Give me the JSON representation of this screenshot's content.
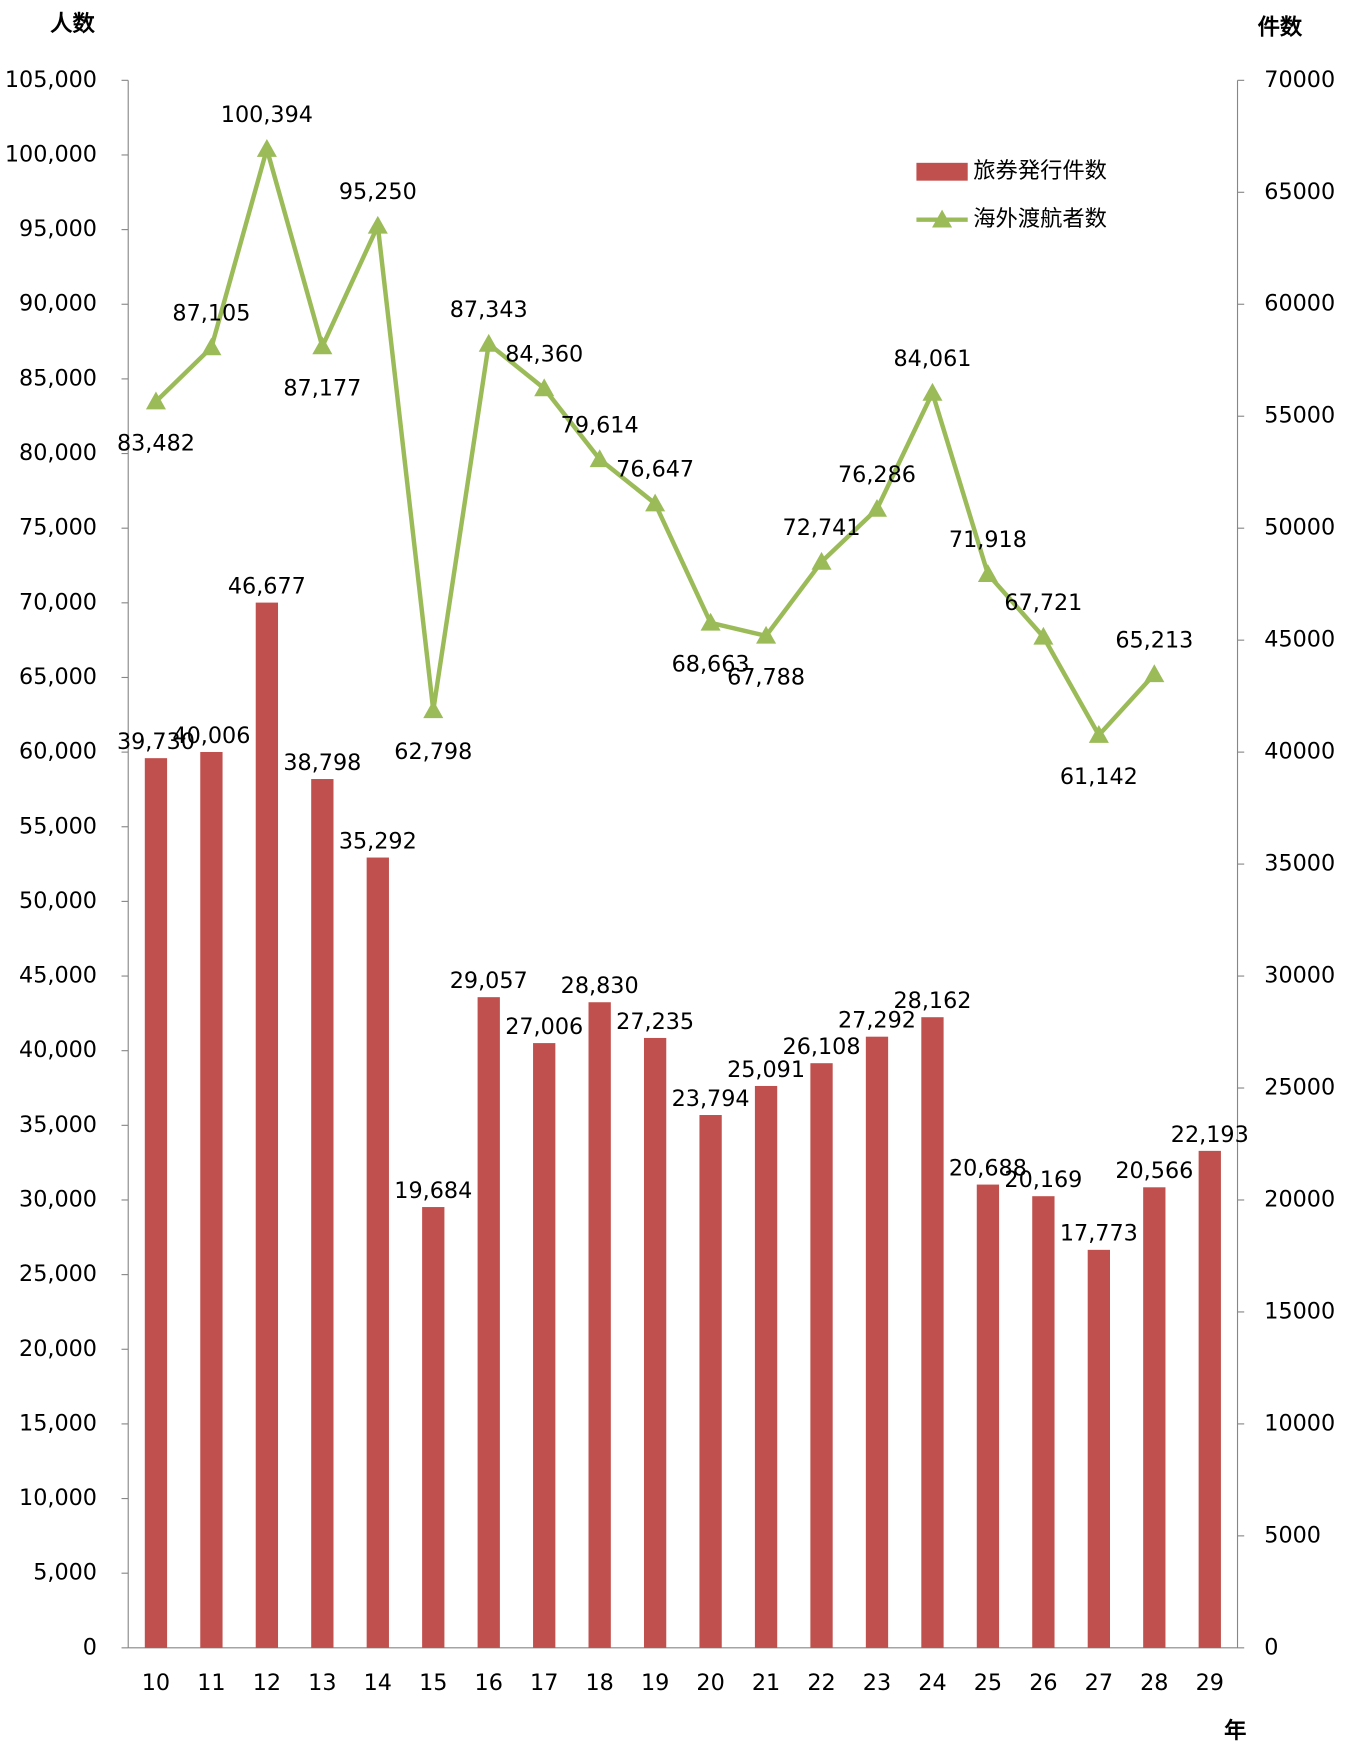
{
  "chart_data": {
    "type": "bar-line",
    "y_label": "人数",
    "y2_label": "件数",
    "x_label": "年",
    "categories": [
      "10",
      "11",
      "12",
      "13",
      "14",
      "15",
      "16",
      "17",
      "18",
      "19",
      "20",
      "21",
      "22",
      "23",
      "24",
      "25",
      "26",
      "27",
      "28",
      "29"
    ],
    "series": [
      {
        "name": "旅券発行件数",
        "type": "bar",
        "axis": "y2",
        "color": "#c0504d",
        "values": [
          39730,
          40006,
          46677,
          38798,
          35292,
          19684,
          29057,
          27006,
          28830,
          27235,
          23794,
          25091,
          26108,
          27292,
          28162,
          20688,
          20169,
          17773,
          20566,
          22193
        ],
        "value_labels": [
          "39,730",
          "40,006",
          "46,677",
          "38,798",
          "35,292",
          "19,684",
          "29,057",
          "27,006",
          "28,830",
          "27,235",
          "23,794",
          "25,091",
          "26,108",
          "27,292",
          "28,162",
          "20,688",
          "20,169",
          "17,773",
          "20,566",
          "22,193"
        ]
      },
      {
        "name": "海外渡航者数",
        "type": "line",
        "axis": "y",
        "color": "#9bbb59",
        "values": [
          83482,
          87105,
          100394,
          87177,
          95250,
          62798,
          87343,
          84360,
          79614,
          76647,
          68663,
          67788,
          72741,
          76286,
          84061,
          71918,
          67721,
          61142,
          65213,
          null
        ],
        "value_labels": [
          "83,482",
          "87,105",
          "100,394",
          "87,177",
          "95,250",
          "62,798",
          "87,343",
          "84,360",
          "79,614",
          "76,647",
          "68,663",
          "67,788",
          "72,741",
          "76,286",
          "84,061",
          "71,918",
          "67,721",
          "61,142",
          "65,213",
          null
        ]
      }
    ],
    "ylim": [
      0,
      105000
    ],
    "yticks": [
      0,
      {
        "value": 5000,
        "label": "5,000"
      },
      {
        "value": 10000,
        "label": "10,000"
      },
      {
        "value": 15000,
        "label": "15,000"
      },
      {
        "value": 20000,
        "label": "20,000"
      },
      {
        "value": 25000,
        "label": "25,000"
      },
      {
        "value": 30000,
        "label": "30,000"
      },
      {
        "value": 35000,
        "label": "35,000"
      },
      {
        "value": 40000,
        "label": "40,000"
      },
      {
        "value": 45000,
        "label": "45,000"
      },
      {
        "value": 50000,
        "label": "50,000"
      },
      {
        "value": 55000,
        "label": "55,000"
      },
      {
        "value": 60000,
        "label": "60,000"
      },
      {
        "value": 65000,
        "label": "65,000"
      },
      {
        "value": 70000,
        "label": "70,000"
      },
      {
        "value": 75000,
        "label": "75,000"
      },
      {
        "value": 80000,
        "label": "80,000"
      },
      {
        "value": 85000,
        "label": "85,000"
      },
      {
        "value": 90000,
        "label": "90,000"
      },
      {
        "value": 95000,
        "label": "95,000"
      },
      {
        "value": 100000,
        "label": "100,000"
      },
      {
        "value": 105000,
        "label": "105,000"
      }
    ],
    "y2lim": [
      0,
      70000
    ],
    "y2ticks": [
      0,
      5000,
      10000,
      15000,
      20000,
      25000,
      30000,
      35000,
      40000,
      45000,
      50000,
      55000,
      60000,
      65000,
      70000
    ],
    "legend": "upper-right",
    "grid": false
  }
}
